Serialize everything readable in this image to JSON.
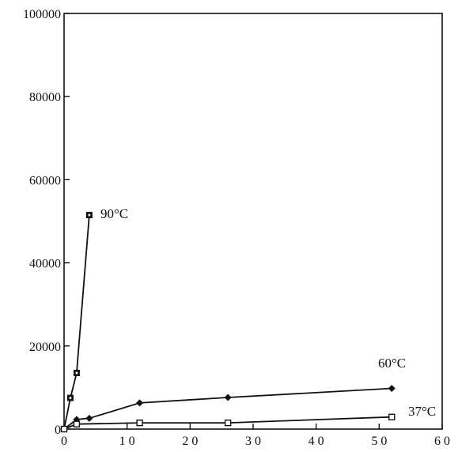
{
  "chart_data": {
    "type": "line",
    "title": "",
    "xlabel": "",
    "ylabel": "",
    "xlim": [
      0,
      60
    ],
    "ylim": [
      0,
      100000
    ],
    "x_ticks": [
      {
        "value": 0,
        "label": "0"
      },
      {
        "value": 10,
        "label": "1 0"
      },
      {
        "value": 20,
        "label": "2 0"
      },
      {
        "value": 30,
        "label": "3 0"
      },
      {
        "value": 40,
        "label": "4 0"
      },
      {
        "value": 50,
        "label": "5 0"
      },
      {
        "value": 60,
        "label": "6 0"
      }
    ],
    "y_ticks": [
      {
        "value": 0,
        "label": "0"
      },
      {
        "value": 20000,
        "label": "20000"
      },
      {
        "value": 40000,
        "label": "40000"
      },
      {
        "value": 60000,
        "label": "60000"
      },
      {
        "value": 80000,
        "label": "80000"
      },
      {
        "value": 100000,
        "label": "100000"
      }
    ],
    "grid": false,
    "series": [
      {
        "name": "90°C",
        "marker": "filled-square",
        "points": [
          [
            0,
            0
          ],
          [
            1,
            7500
          ],
          [
            2,
            13500
          ],
          [
            4,
            51500
          ]
        ]
      },
      {
        "name": "60°C",
        "marker": "filled-diamond",
        "points": [
          [
            0,
            0
          ],
          [
            2,
            2300
          ],
          [
            4,
            2600
          ],
          [
            12,
            6300
          ],
          [
            26,
            7600
          ],
          [
            52,
            9800
          ]
        ]
      },
      {
        "name": "37°C",
        "marker": "open-square",
        "points": [
          [
            0,
            0
          ],
          [
            2,
            1200
          ],
          [
            12,
            1500
          ],
          [
            26,
            1500
          ],
          [
            52,
            2900
          ]
        ]
      }
    ]
  }
}
